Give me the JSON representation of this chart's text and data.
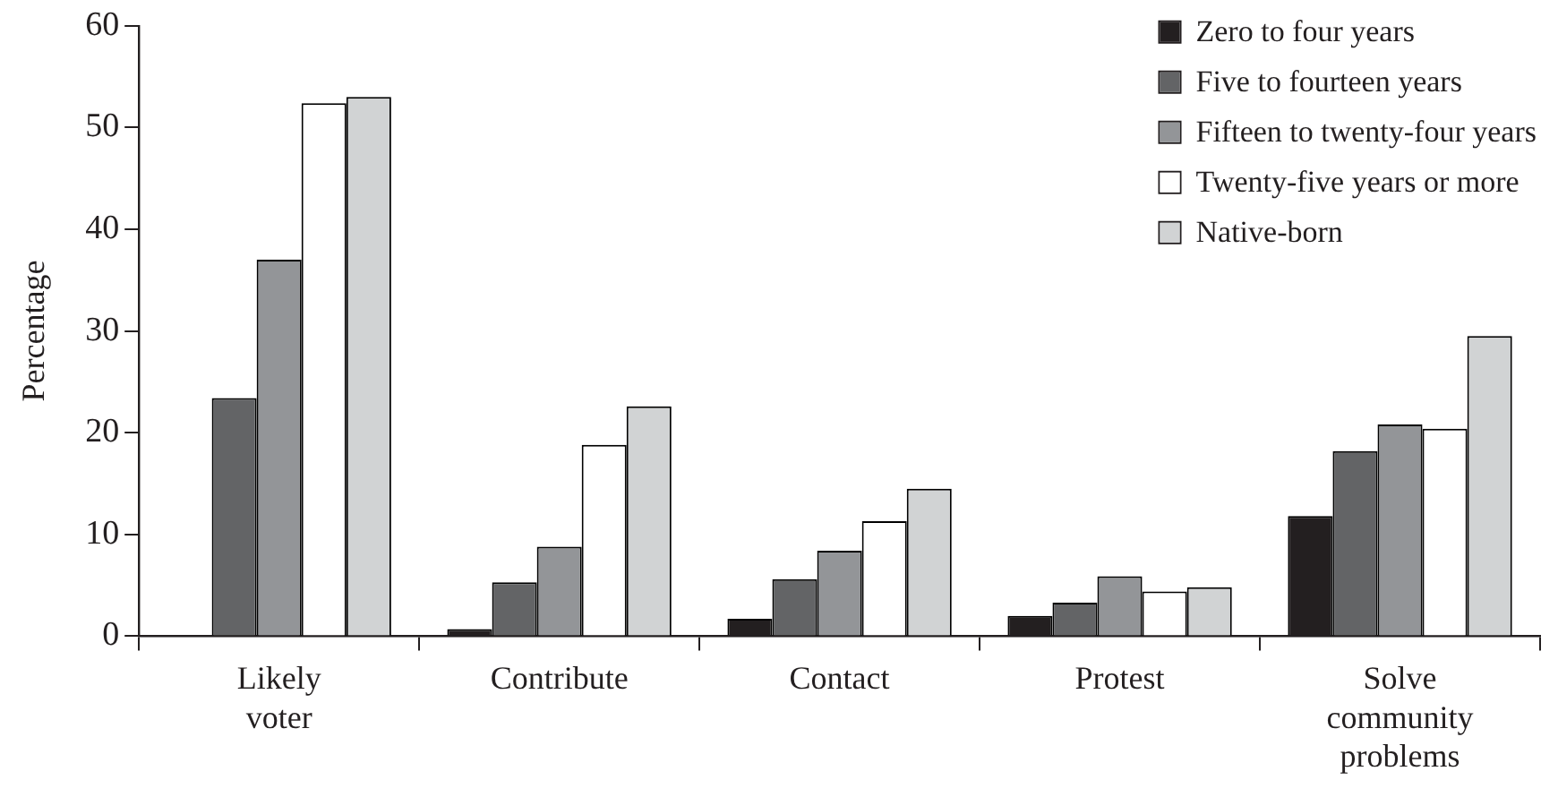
{
  "chart_data": {
    "type": "bar",
    "ylabel": "Percentage",
    "categories": [
      "Likely voter",
      "Contribute",
      "Contact",
      "Protest",
      "Solve community problems"
    ],
    "series": [
      {
        "name": "Zero to four years",
        "color": "#231f20",
        "values": [
          null,
          0.7,
          1.7,
          2.0,
          11.8
        ]
      },
      {
        "name": "Five to fourteen years",
        "color": "#636466",
        "values": [
          23.4,
          5.3,
          5.6,
          3.3,
          18.2
        ]
      },
      {
        "name": "Fifteen to twenty-four years",
        "color": "#939598",
        "values": [
          37.0,
          8.8,
          8.4,
          5.9,
          20.8
        ]
      },
      {
        "name": "Twenty-five years or more",
        "color": "#ffffff",
        "values": [
          52.4,
          18.8,
          11.3,
          4.4,
          20.4
        ]
      },
      {
        "name": "Native-born",
        "color": "#d1d3d4",
        "values": [
          53.0,
          22.6,
          14.5,
          4.8,
          29.5
        ]
      }
    ],
    "ylim": [
      0,
      60
    ],
    "yticks": [
      0,
      10,
      20,
      30,
      40,
      50,
      60
    ],
    "grid": false,
    "legend": "top right"
  }
}
